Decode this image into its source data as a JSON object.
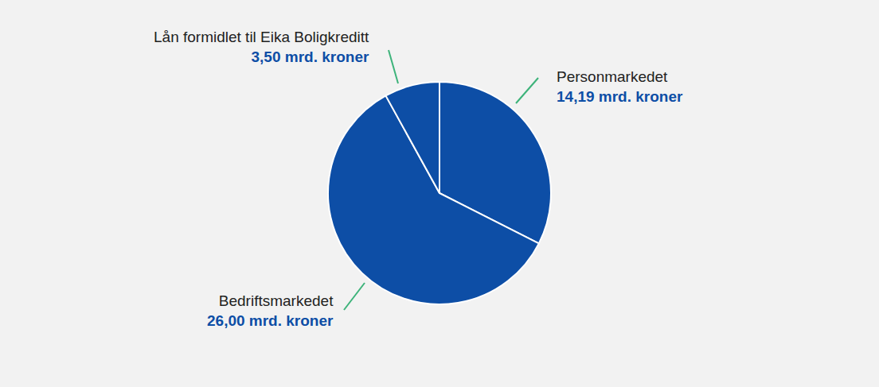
{
  "chart_data": {
    "type": "pie",
    "categories": [
      "Personmarkedet",
      "Bedriftsmarkedet",
      "Lån formidlet til Eika Boligkreditt"
    ],
    "values": [
      14.19,
      26.0,
      3.5
    ],
    "value_labels": [
      "14,19 mrd. kroner",
      "26,00 mrd. kroner",
      "3,50 mrd. kroner"
    ],
    "color": "#0d4ea6",
    "data_labels": true
  }
}
